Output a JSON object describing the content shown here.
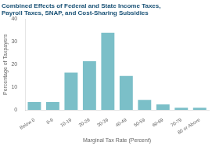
{
  "chart_data": {
    "type": "bar",
    "title": [
      "Combined Effects of Federal and State Income Taxes,",
      "Payroll Taxes, SNAP, and Cost-Sharing Subsidies"
    ],
    "xlabel": "Marginal Tax Rate (Percent)",
    "ylabel": "Percentage of Taxpayers",
    "categories": [
      "Below 0",
      "0-9",
      "10-19",
      "20-29",
      "30-39",
      "40-49",
      "50-59",
      "60-69",
      "70-79",
      "80 or Above"
    ],
    "values": [
      3.5,
      3.5,
      16.5,
      21.5,
      34.0,
      15.0,
      4.5,
      2.5,
      1.0,
      1.0
    ],
    "color": "#7bbfc8",
    "ylim": [
      0,
      40
    ],
    "yticks": [
      0,
      10,
      20,
      30,
      40
    ],
    "grid": false
  }
}
